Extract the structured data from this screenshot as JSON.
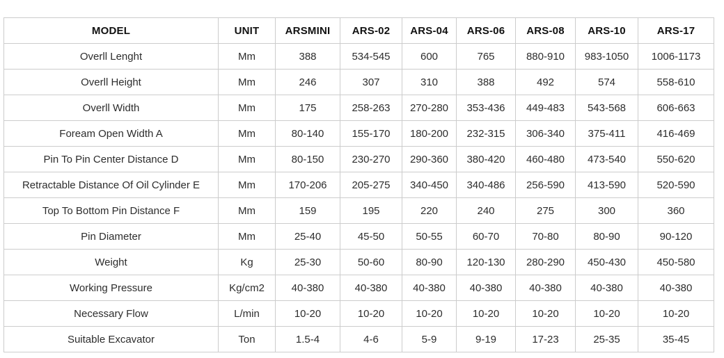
{
  "chart_data": {
    "type": "table",
    "columns": [
      "MODEL",
      "UNIT",
      "ARSMINI",
      "ARS-02",
      "ARS-04",
      "ARS-06",
      "ARS-08",
      "ARS-10",
      "ARS-17"
    ],
    "rows": [
      [
        "Overll Lenght",
        "Mm",
        "388",
        "534-545",
        "600",
        "765",
        "880-910",
        "983-1050",
        "1006-1173"
      ],
      [
        "Overll Height",
        "Mm",
        "246",
        "307",
        "310",
        "388",
        "492",
        "574",
        "558-610"
      ],
      [
        "Overll Width",
        "Mm",
        "175",
        "258-263",
        "270-280",
        "353-436",
        "449-483",
        "543-568",
        "606-663"
      ],
      [
        "Foream Open Width A",
        "Mm",
        "80-140",
        "155-170",
        "180-200",
        "232-315",
        "306-340",
        "375-411",
        "416-469"
      ],
      [
        "Pin To Pin Center Distance D",
        "Mm",
        "80-150",
        "230-270",
        "290-360",
        "380-420",
        "460-480",
        "473-540",
        "550-620"
      ],
      [
        "Retractable Distance Of Oil Cylinder E",
        "Mm",
        "170-206",
        "205-275",
        "340-450",
        "340-486",
        "256-590",
        "413-590",
        "520-590"
      ],
      [
        "Top To Bottom Pin Distance F",
        "Mm",
        "159",
        "195",
        "220",
        "240",
        "275",
        "300",
        "360"
      ],
      [
        "Pin Diameter",
        "Mm",
        "25-40",
        "45-50",
        "50-55",
        "60-70",
        "70-80",
        "80-90",
        "90-120"
      ],
      [
        "Weight",
        "Kg",
        "25-30",
        "50-60",
        "80-90",
        "120-130",
        "280-290",
        "450-430",
        "450-580"
      ],
      [
        "Working Pressure",
        "Kg/cm2",
        "40-380",
        "40-380",
        "40-380",
        "40-380",
        "40-380",
        "40-380",
        "40-380"
      ],
      [
        "Necessary Flow",
        "L/min",
        "10-20",
        "10-20",
        "10-20",
        "10-20",
        "10-20",
        "10-20",
        "10-20"
      ],
      [
        "Suitable Excavator",
        "Ton",
        "1.5-4",
        "4-6",
        "5-9",
        "9-19",
        "17-23",
        "25-35",
        "35-45"
      ]
    ]
  },
  "colors": {
    "border": "#cccccc",
    "header_text": "#111111",
    "body_text": "#2d2d2d",
    "background": "#ffffff"
  }
}
